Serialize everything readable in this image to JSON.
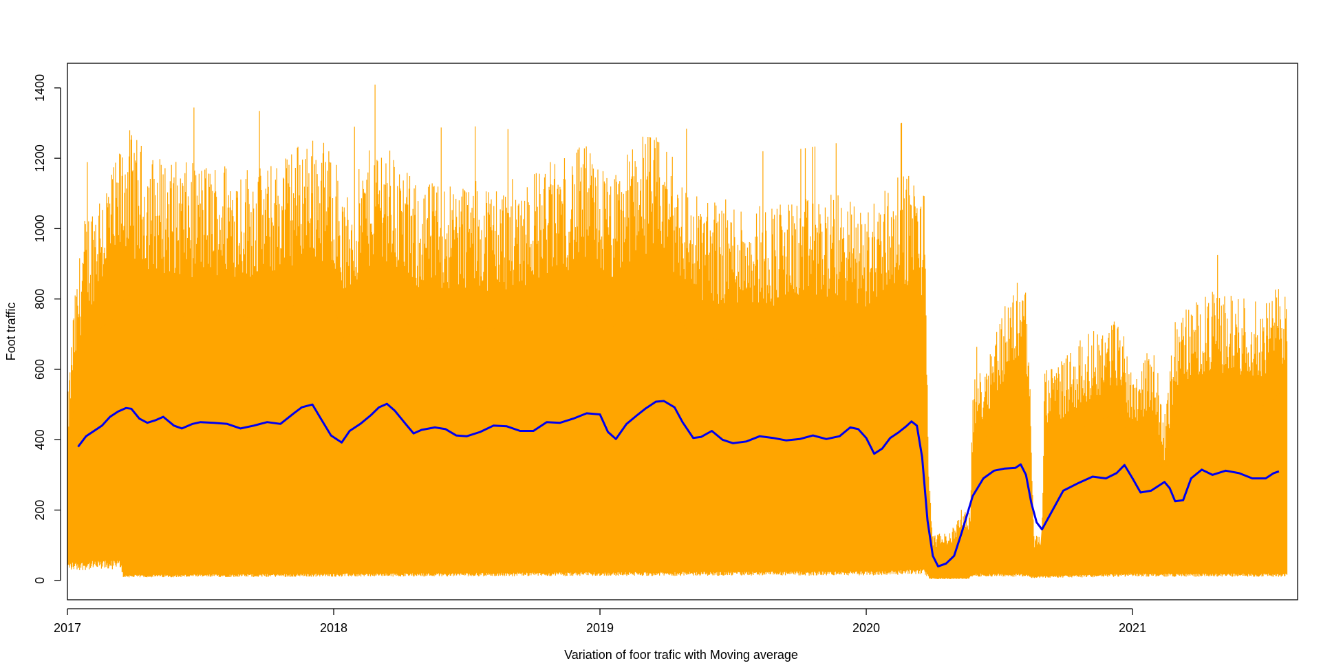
{
  "chart_data": {
    "type": "line",
    "title": "",
    "xlabel": "Variation of foor trafic with Moving average",
    "ylabel": "Foot traffic",
    "xlim": [
      2017.0,
      2021.62
    ],
    "ylim": [
      -55,
      1470
    ],
    "x_ticks": [
      "2017",
      "2018",
      "2019",
      "2020",
      "2021"
    ],
    "y_ticks": [
      "0",
      "200",
      "400",
      "600",
      "800",
      "1000",
      "1200",
      "1400"
    ],
    "grid": false,
    "legend": "none",
    "colors": {
      "raw": "#FFA500",
      "moving_average": "#0000EE",
      "axis": "#000000"
    },
    "series": [
      {
        "role": "raw",
        "x_range": [
          2017.0,
          2021.58
        ],
        "envelope_upper": [
          [
            2017.0,
            470
          ],
          [
            2017.02,
            700
          ],
          [
            2017.06,
            950
          ],
          [
            2017.12,
            1050
          ],
          [
            2017.18,
            1100
          ],
          [
            2017.22,
            1200
          ],
          [
            2017.3,
            1130
          ],
          [
            2017.45,
            1100
          ],
          [
            2017.6,
            1110
          ],
          [
            2017.75,
            1090
          ],
          [
            2017.9,
            1180
          ],
          [
            2018.0,
            1150
          ],
          [
            2018.04,
            1000
          ],
          [
            2018.12,
            1120
          ],
          [
            2018.18,
            1180
          ],
          [
            2018.3,
            1050
          ],
          [
            2018.5,
            1060
          ],
          [
            2018.65,
            1050
          ],
          [
            2018.8,
            1100
          ],
          [
            2018.95,
            1150
          ],
          [
            2019.05,
            1060
          ],
          [
            2019.15,
            1200
          ],
          [
            2019.25,
            1150
          ],
          [
            2019.35,
            1020
          ],
          [
            2019.5,
            1000
          ],
          [
            2019.7,
            1000
          ],
          [
            2019.9,
            1020
          ],
          [
            2020.0,
            980
          ],
          [
            2020.08,
            1050
          ],
          [
            2020.18,
            1080
          ],
          [
            2020.22,
            1020
          ],
          [
            2020.235,
            300
          ],
          [
            2020.25,
            120
          ],
          [
            2020.32,
            130
          ],
          [
            2020.36,
            190
          ],
          [
            2020.39,
            180
          ],
          [
            2020.4,
            520
          ],
          [
            2020.45,
            600
          ],
          [
            2020.5,
            700
          ],
          [
            2020.56,
            780
          ],
          [
            2020.59,
            850
          ],
          [
            2020.61,
            650
          ],
          [
            2020.63,
            120
          ],
          [
            2020.66,
            120
          ],
          [
            2020.67,
            550
          ],
          [
            2020.75,
            600
          ],
          [
            2020.85,
            660
          ],
          [
            2020.95,
            700
          ],
          [
            2021.0,
            560
          ],
          [
            2021.08,
            620
          ],
          [
            2021.12,
            430
          ],
          [
            2021.16,
            690
          ],
          [
            2021.2,
            720
          ],
          [
            2021.3,
            760
          ],
          [
            2021.4,
            750
          ],
          [
            2021.5,
            730
          ],
          [
            2021.56,
            790
          ],
          [
            2021.58,
            780
          ]
        ],
        "envelope_lower": [
          [
            2017.0,
            40
          ],
          [
            2017.2,
            45
          ],
          [
            2017.21,
            12
          ],
          [
            2018.0,
            15
          ],
          [
            2019.0,
            18
          ],
          [
            2020.0,
            20
          ],
          [
            2020.22,
            25
          ],
          [
            2020.24,
            5
          ],
          [
            2020.38,
            5
          ],
          [
            2020.4,
            15
          ],
          [
            2020.6,
            15
          ],
          [
            2020.62,
            8
          ],
          [
            2020.66,
            10
          ],
          [
            2021.0,
            15
          ],
          [
            2021.58,
            15
          ]
        ]
      },
      {
        "name": "",
        "role": "moving_average",
        "x": [
          2017.04,
          2017.07,
          2017.1,
          2017.13,
          2017.16,
          2017.19,
          2017.22,
          2017.24,
          2017.27,
          2017.3,
          2017.33,
          2017.36,
          2017.4,
          2017.43,
          2017.47,
          2017.5,
          2017.55,
          2017.6,
          2017.65,
          2017.7,
          2017.75,
          2017.8,
          2017.85,
          2017.88,
          2017.92,
          2017.95,
          2017.99,
          2018.03,
          2018.06,
          2018.1,
          2018.14,
          2018.17,
          2018.2,
          2018.23,
          2018.27,
          2018.3,
          2018.33,
          2018.38,
          2018.42,
          2018.46,
          2018.5,
          2018.55,
          2018.6,
          2018.65,
          2018.7,
          2018.75,
          2018.8,
          2018.85,
          2018.9,
          2018.95,
          2019.0,
          2019.03,
          2019.06,
          2019.1,
          2019.14,
          2019.17,
          2019.21,
          2019.24,
          2019.28,
          2019.31,
          2019.35,
          2019.38,
          2019.42,
          2019.46,
          2019.5,
          2019.55,
          2019.6,
          2019.65,
          2019.7,
          2019.75,
          2019.8,
          2019.85,
          2019.9,
          2019.94,
          2019.97,
          2020.0,
          2020.03,
          2020.06,
          2020.09,
          2020.12,
          2020.15,
          2020.17,
          2020.19,
          2020.21,
          2020.23,
          2020.25,
          2020.27,
          2020.3,
          2020.33,
          2020.36,
          2020.4,
          2020.44,
          2020.48,
          2020.52,
          2020.56,
          2020.58,
          2020.6,
          2020.62,
          2020.64,
          2020.66,
          2020.7,
          2020.74,
          2020.8,
          2020.85,
          2020.9,
          2020.94,
          2020.97,
          2021.0,
          2021.03,
          2021.07,
          2021.1,
          2021.12,
          2021.14,
          2021.16,
          2021.19,
          2021.22,
          2021.26,
          2021.3,
          2021.35,
          2021.4,
          2021.45,
          2021.5,
          2021.53,
          2021.55
        ],
        "values": [
          380,
          410,
          425,
          440,
          465,
          480,
          490,
          488,
          460,
          448,
          455,
          465,
          440,
          432,
          445,
          450,
          448,
          445,
          432,
          440,
          450,
          445,
          475,
          492,
          500,
          462,
          412,
          392,
          425,
          445,
          470,
          492,
          502,
          482,
          445,
          418,
          428,
          435,
          430,
          412,
          410,
          422,
          440,
          438,
          425,
          425,
          450,
          448,
          460,
          475,
          472,
          422,
          402,
          445,
          470,
          488,
          508,
          510,
          492,
          450,
          405,
          408,
          425,
          400,
          390,
          395,
          410,
          405,
          398,
          402,
          412,
          402,
          410,
          435,
          430,
          405,
          360,
          375,
          405,
          420,
          438,
          452,
          440,
          350,
          170,
          70,
          40,
          48,
          70,
          140,
          240,
          290,
          312,
          318,
          320,
          330,
          300,
          220,
          165,
          145,
          200,
          255,
          278,
          295,
          290,
          305,
          328,
          290,
          250,
          255,
          270,
          280,
          262,
          225,
          228,
          290,
          315,
          300,
          312,
          305,
          290,
          290,
          305,
          310
        ]
      }
    ]
  }
}
